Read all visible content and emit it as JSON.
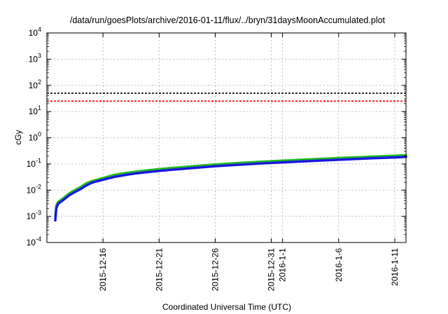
{
  "chart_data": {
    "type": "line",
    "title": "/data/run/goesPlots/archive/2016-01-11/flux/../bryn/31daysMoonAccumulated.plot",
    "xlabel": "Coordinated Universal Time (UTC)",
    "ylabel": "cGy",
    "yscale": "log",
    "ylim": [
      0.0001,
      10000
    ],
    "xlim": [
      "2015-12-11",
      "2016-01-12"
    ],
    "grid": true,
    "y_ticks": [
      {
        "base": "10",
        "exp": "-4",
        "value": 0.0001
      },
      {
        "base": "10",
        "exp": "-3",
        "value": 0.001
      },
      {
        "base": "10",
        "exp": "-2",
        "value": 0.01
      },
      {
        "base": "10",
        "exp": "-1",
        "value": 0.1
      },
      {
        "base": "10",
        "exp": "0",
        "value": 1
      },
      {
        "base": "10",
        "exp": "1",
        "value": 10
      },
      {
        "base": "10",
        "exp": "2",
        "value": 100
      },
      {
        "base": "10",
        "exp": "3",
        "value": 1000
      },
      {
        "base": "10",
        "exp": "4",
        "value": 10000
      }
    ],
    "x_ticks": [
      {
        "label": "2015-12-16",
        "date": "2015-12-16"
      },
      {
        "label": "2015-12-21",
        "date": "2015-12-21"
      },
      {
        "label": "2015-12-26",
        "date": "2015-12-26"
      },
      {
        "label": "2015-12-31",
        "date": "2015-12-31"
      },
      {
        "label": "2016-1-1",
        "date": "2016-01-01"
      },
      {
        "label": "2016-1-6",
        "date": "2016-01-06"
      },
      {
        "label": "2016-1-11",
        "date": "2016-01-11"
      }
    ],
    "reference_lines": [
      {
        "value": 50,
        "color": "#000000"
      },
      {
        "value": 25,
        "color": "#ff0000"
      }
    ],
    "series": [
      {
        "color": "#22bb22",
        "x": [
          "2015-12-11T18:00",
          "2015-12-11T20:00",
          "2015-12-12T00:00",
          "2015-12-12T12:00",
          "2015-12-13T00:00",
          "2015-12-13T12:00",
          "2015-12-14T00:00",
          "2015-12-14T12:00",
          "2015-12-15T00:00",
          "2015-12-15T12:00",
          "2015-12-16T00:00",
          "2015-12-17T00:00",
          "2015-12-18T00:00",
          "2015-12-19T00:00",
          "2015-12-20T00:00",
          "2015-12-21T00:00",
          "2015-12-22T00:00",
          "2015-12-24T00:00",
          "2015-12-26T00:00",
          "2015-12-28T00:00",
          "2015-12-30T00:00",
          "2016-01-01T00:00",
          "2016-01-03T00:00",
          "2016-01-05T00:00",
          "2016-01-07T00:00",
          "2016-01-09T00:00",
          "2016-01-11T00:00",
          "2016-01-12T00:00"
        ],
        "y": [
          0.0009,
          0.0025,
          0.0035,
          0.005,
          0.0075,
          0.01,
          0.013,
          0.018,
          0.022,
          0.025,
          0.029,
          0.038,
          0.045,
          0.051,
          0.057,
          0.063,
          0.069,
          0.081,
          0.095,
          0.108,
          0.12,
          0.133,
          0.145,
          0.16,
          0.175,
          0.19,
          0.205,
          0.215
        ]
      },
      {
        "color": "#1c1cdd",
        "x": [
          "2015-12-11T18:00",
          "2015-12-11T20:00",
          "2015-12-12T00:00",
          "2015-12-12T12:00",
          "2015-12-13T00:00",
          "2015-12-13T12:00",
          "2015-12-14T00:00",
          "2015-12-14T12:00",
          "2015-12-15T00:00",
          "2015-12-15T12:00",
          "2015-12-16T00:00",
          "2015-12-17T00:00",
          "2015-12-18T00:00",
          "2015-12-19T00:00",
          "2015-12-20T00:00",
          "2015-12-21T00:00",
          "2015-12-22T00:00",
          "2015-12-24T00:00",
          "2015-12-26T00:00",
          "2015-12-28T00:00",
          "2015-12-30T00:00",
          "2016-01-01T00:00",
          "2016-01-03T00:00",
          "2016-01-05T00:00",
          "2016-01-07T00:00",
          "2016-01-09T00:00",
          "2016-01-11T00:00",
          "2016-01-12T00:00"
        ],
        "y": [
          0.0007,
          0.002,
          0.003,
          0.0043,
          0.0064,
          0.0085,
          0.011,
          0.015,
          0.019,
          0.022,
          0.025,
          0.032,
          0.038,
          0.044,
          0.049,
          0.054,
          0.059,
          0.07,
          0.082,
          0.093,
          0.104,
          0.115,
          0.126,
          0.138,
          0.151,
          0.164,
          0.177,
          0.186
        ]
      }
    ]
  }
}
